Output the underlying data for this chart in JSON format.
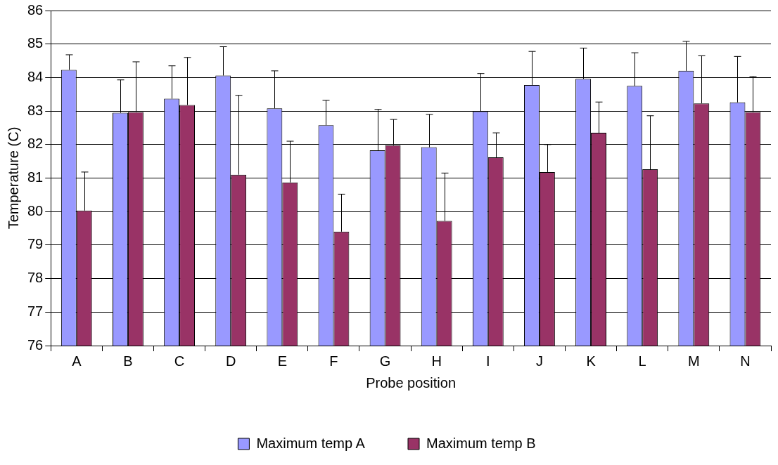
{
  "chart_data": {
    "type": "bar",
    "xlabel": "Probe position",
    "ylabel": "Temperature (C)",
    "categories": [
      "A",
      "B",
      "C",
      "D",
      "E",
      "F",
      "G",
      "H",
      "I",
      "J",
      "K",
      "L",
      "M",
      "N"
    ],
    "series": [
      {
        "name": "Maximum temp A",
        "color": "#9999ff",
        "values": [
          84.23,
          82.95,
          83.37,
          84.06,
          83.08,
          82.58,
          81.83,
          81.92,
          82.99,
          83.78,
          83.96,
          83.75,
          84.2,
          83.26
        ],
        "errors": [
          [
            84.23,
            84.68
          ],
          [
            82.95,
            83.93
          ],
          [
            83.37,
            84.35
          ],
          [
            84.06,
            84.92
          ],
          [
            83.08,
            84.2
          ],
          [
            82.58,
            83.32
          ],
          [
            81.83,
            83.05
          ],
          [
            81.92,
            82.9
          ],
          [
            82.99,
            84.12
          ],
          [
            83.78,
            84.78
          ],
          [
            83.96,
            84.88
          ],
          [
            83.75,
            84.74
          ],
          [
            84.2,
            85.08
          ],
          [
            83.26,
            84.63
          ]
        ]
      },
      {
        "name": "Maximum temp B",
        "color": "#993366",
        "values": [
          80.03,
          82.97,
          83.18,
          81.1,
          80.87,
          79.4,
          81.98,
          79.72,
          81.62,
          81.18,
          82.35,
          81.26,
          83.23,
          82.97
        ],
        "errors": [
          [
            80.03,
            81.18
          ],
          [
            82.97,
            84.47
          ],
          [
            83.18,
            84.6
          ],
          [
            81.1,
            83.47
          ],
          [
            80.87,
            82.1
          ],
          [
            79.4,
            80.52
          ],
          [
            81.98,
            82.75
          ],
          [
            79.72,
            81.15
          ],
          [
            81.62,
            82.35
          ],
          [
            81.18,
            82.0
          ],
          [
            82.35,
            83.27
          ],
          [
            81.26,
            82.86
          ],
          [
            83.23,
            84.65
          ],
          [
            82.97,
            84.03
          ]
        ]
      }
    ],
    "ylim": [
      76,
      86
    ],
    "yticks": [
      76,
      77,
      78,
      79,
      80,
      81,
      82,
      83,
      84,
      85,
      86
    ],
    "grid": "y",
    "legend": "bottom"
  }
}
